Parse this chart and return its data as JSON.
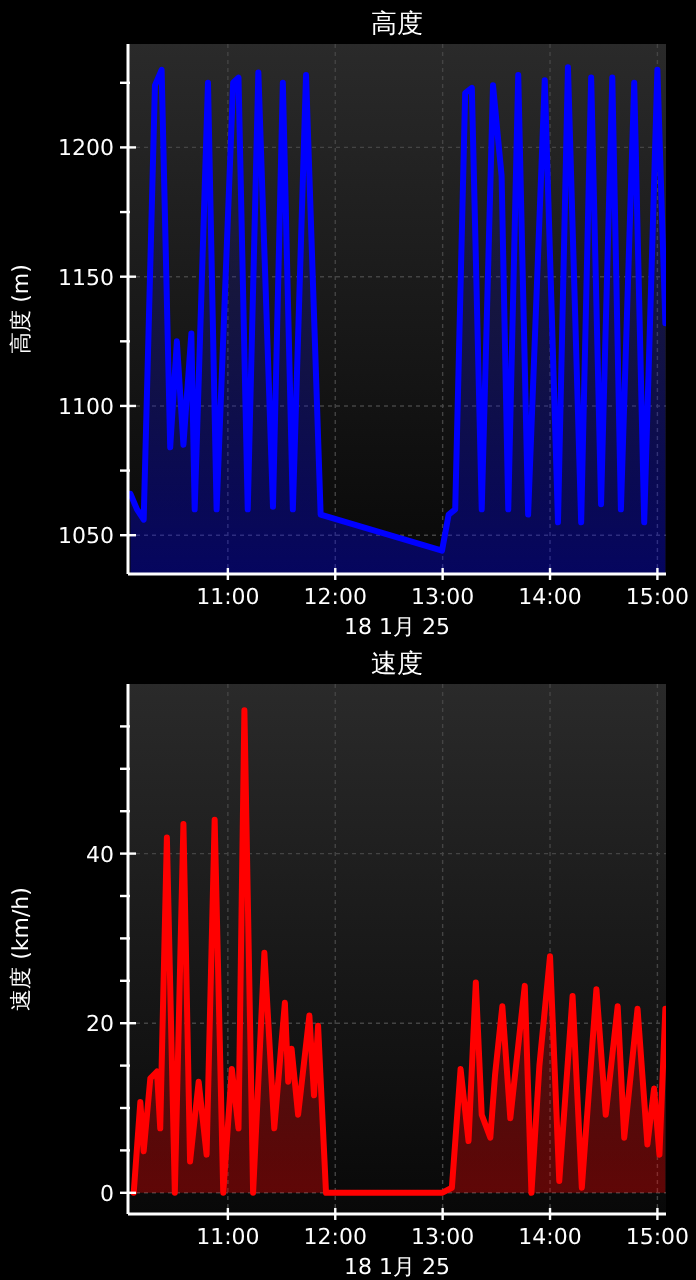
{
  "chart_data": [
    {
      "type": "area",
      "title": "高度",
      "xlabel": "18 1月 25",
      "ylabel": "高度 (m)",
      "grid": true,
      "marker": "none",
      "xlim": [
        10.07,
        15.08
      ],
      "ylim": [
        1035,
        1240
      ],
      "xticks": [
        {
          "value": 11,
          "label": "11:00"
        },
        {
          "value": 12,
          "label": "12:00"
        },
        {
          "value": 13,
          "label": "13:00"
        },
        {
          "value": 14,
          "label": "14:00"
        },
        {
          "value": 15,
          "label": "15:00"
        }
      ],
      "yticks": [
        1050,
        {
          "value": 1075,
          "label": null
        },
        1100,
        {
          "value": 1125,
          "label": null
        },
        1150,
        {
          "value": 1175,
          "label": null
        },
        1200,
        {
          "value": 1225,
          "label": null
        }
      ],
      "x": [
        10.093,
        10.154,
        10.216,
        10.321,
        10.383,
        10.463,
        10.525,
        10.586,
        10.66,
        10.691,
        10.815,
        10.895,
        11.049,
        11.099,
        11.185,
        11.284,
        11.42,
        11.512,
        11.605,
        11.728,
        11.864,
        12.994,
        13.056,
        13.117,
        13.21,
        13.272,
        13.364,
        13.469,
        13.549,
        13.611,
        13.704,
        13.796,
        13.951,
        14.074,
        14.167,
        14.29,
        14.383,
        14.475,
        14.58,
        14.66,
        14.784,
        14.877,
        15.0,
        15.074
      ],
      "series": [
        {
          "color": "#0000ff",
          "values": [
            1066,
            1060,
            1056,
            1224,
            1230,
            1084,
            1125,
            1085,
            1128,
            1060,
            1225,
            1060,
            1225,
            1227,
            1060,
            1229,
            1061,
            1225,
            1060,
            1228,
            1058,
            1044,
            1058,
            1060,
            1221,
            1223,
            1060,
            1224,
            1189,
            1060,
            1228,
            1058,
            1226,
            1055,
            1231,
            1055,
            1227,
            1062,
            1227,
            1060,
            1225,
            1055,
            1230,
            1132
          ]
        }
      ]
    },
    {
      "type": "area",
      "title": "速度",
      "xlabel": "18 1月 25",
      "ylabel": "速度 (km/h)",
      "grid": true,
      "marker": "none",
      "xlim": [
        10.07,
        15.08
      ],
      "ylim": [
        -2.5,
        60
      ],
      "xticks": [
        {
          "value": 11,
          "label": "11:00"
        },
        {
          "value": 12,
          "label": "12:00"
        },
        {
          "value": 13,
          "label": "13:00"
        },
        {
          "value": 14,
          "label": "14:00"
        },
        {
          "value": 15,
          "label": "15:00"
        }
      ],
      "yticks": [
        0,
        {
          "value": 5,
          "label": null
        },
        {
          "value": 10,
          "label": null
        },
        {
          "value": 15,
          "label": null
        },
        20,
        {
          "value": 25,
          "label": null
        },
        {
          "value": 30,
          "label": null
        },
        {
          "value": 35,
          "label": null
        },
        40,
        {
          "value": 45,
          "label": null
        },
        {
          "value": 50,
          "label": null
        },
        {
          "value": 55,
          "label": null
        }
      ],
      "x": [
        10.123,
        10.185,
        10.216,
        10.278,
        10.34,
        10.37,
        10.432,
        10.506,
        10.586,
        10.648,
        10.728,
        10.802,
        10.877,
        10.957,
        11.037,
        11.099,
        11.154,
        11.235,
        11.34,
        11.432,
        11.531,
        11.562,
        11.593,
        11.654,
        11.759,
        11.802,
        11.84,
        11.914,
        12.994,
        13.086,
        13.167,
        13.241,
        13.309,
        13.364,
        13.444,
        13.488,
        13.556,
        13.63,
        13.765,
        13.827,
        13.901,
        14.0,
        14.086,
        14.21,
        14.296,
        14.432,
        14.519,
        14.63,
        14.691,
        14.815,
        14.907,
        14.969,
        15.019,
        15.074
      ],
      "series": [
        {
          "color": "#ff0000",
          "values": [
            0,
            10.7,
            4.9,
            13.5,
            14.3,
            7.6,
            41.9,
            0,
            43.5,
            3.7,
            13.1,
            4.5,
            44,
            0,
            14.6,
            7.6,
            56.9,
            0,
            28.3,
            7.6,
            22.4,
            13.1,
            17,
            9.2,
            20.9,
            11.5,
            19.7,
            0,
            0,
            0.6,
            14.6,
            6.1,
            24.8,
            9.2,
            6.5,
            13.9,
            22,
            8.8,
            24.4,
            0,
            15,
            27.9,
            1.4,
            23.2,
            0.6,
            24,
            9.2,
            22,
            6.5,
            21.7,
            5.7,
            12.3,
            4.5,
            21.7
          ]
        }
      ]
    }
  ]
}
